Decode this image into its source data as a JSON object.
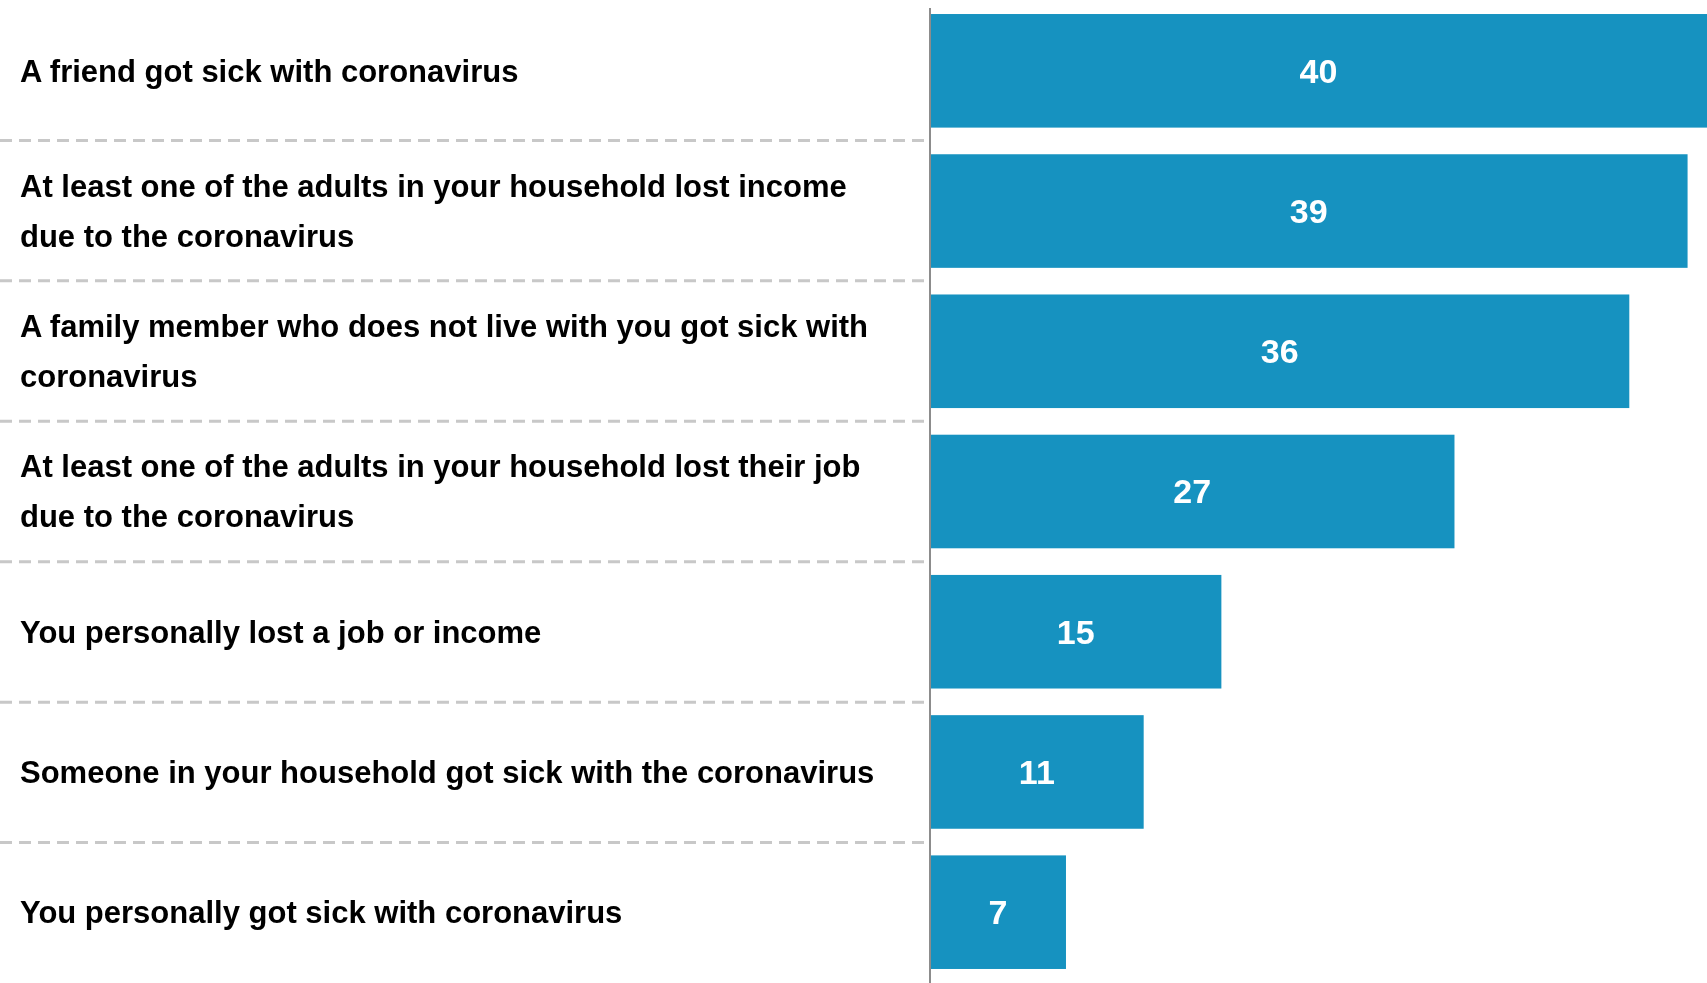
{
  "chart_data": {
    "type": "bar",
    "orientation": "horizontal",
    "categories": [
      "A friend got sick with coronavirus",
      "At least one of the adults in your household lost income due to the coronavirus",
      "A family member who does not live with you got sick with coronavirus",
      "At least one of the adults in your household lost their job due to the coronavirus",
      "You personally lost a job or income",
      "Someone in your household got sick with the coronavirus",
      "You personally got sick with coronavirus"
    ],
    "values": [
      40,
      39,
      36,
      27,
      15,
      11,
      7
    ],
    "color": "#1692c0",
    "data_labels": true
  }
}
